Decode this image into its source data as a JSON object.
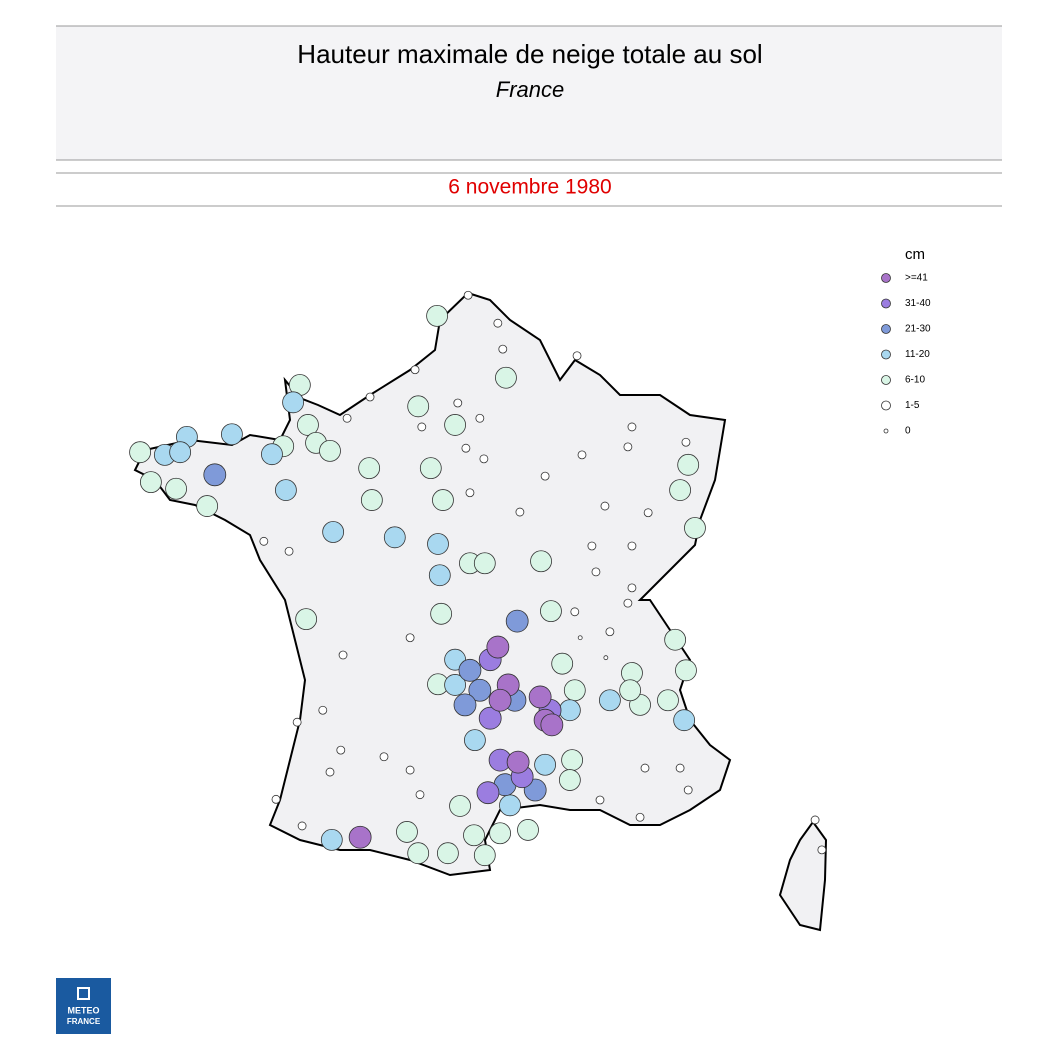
{
  "header": {
    "title": "Hauteur maximale de neige totale au sol",
    "subtitle": "France",
    "date": "6 novembre 1980"
  },
  "legend": {
    "title": "cm",
    "classes": [
      {
        "label": ">=41",
        "color": "#a873c9"
      },
      {
        "label": "31-40",
        "color": "#9b7de0"
      },
      {
        "label": "21-30",
        "color": "#7f9ad9"
      },
      {
        "label": "11-20",
        "color": "#a9d8f0"
      },
      {
        "label": "6-10",
        "color": "#d9f5e6"
      },
      {
        "label": "1-5",
        "color": "#ffffff"
      },
      {
        "label": "0",
        "color": "#ffffff"
      }
    ]
  },
  "logo": {
    "line1": "METEO",
    "line2": "FRANCE"
  },
  "stations": [
    {
      "lon": 2.57,
      "lat": 51.03,
      "class": 5
    },
    {
      "lon": 3.23,
      "lat": 50.61,
      "class": 5
    },
    {
      "lon": 3.34,
      "lat": 50.22,
      "class": 5
    },
    {
      "lon": 4.99,
      "lat": 50.12,
      "class": 5
    },
    {
      "lon": 1.39,
      "lat": 49.91,
      "class": 5
    },
    {
      "lon": 0.39,
      "lat": 49.5,
      "class": 5
    },
    {
      "lon": -0.12,
      "lat": 49.18,
      "class": 5
    },
    {
      "lon": 2.34,
      "lat": 49.41,
      "class": 5
    },
    {
      "lon": 2.83,
      "lat": 49.18,
      "class": 5
    },
    {
      "lon": 2.52,
      "lat": 48.73,
      "class": 5
    },
    {
      "lon": 2.92,
      "lat": 48.57,
      "class": 5
    },
    {
      "lon": 1.54,
      "lat": 49.05,
      "class": 5
    },
    {
      "lon": 4.28,
      "lat": 48.31,
      "class": 5
    },
    {
      "lon": 5.1,
      "lat": 48.63,
      "class": 5
    },
    {
      "lon": 6.21,
      "lat": 49.05,
      "class": 5
    },
    {
      "lon": 6.12,
      "lat": 48.75,
      "class": 5
    },
    {
      "lon": 7.41,
      "lat": 48.82,
      "class": 5
    },
    {
      "lon": 5.61,
      "lat": 47.86,
      "class": 5
    },
    {
      "lon": 6.57,
      "lat": 47.76,
      "class": 5
    },
    {
      "lon": 3.72,
      "lat": 47.77,
      "class": 5
    },
    {
      "lon": 2.61,
      "lat": 48.06,
      "class": 5
    },
    {
      "lon": -1.97,
      "lat": 47.33,
      "class": 5
    },
    {
      "lon": -1.41,
      "lat": 47.18,
      "class": 5
    },
    {
      "lon": 5.32,
      "lat": 47.26,
      "class": 5
    },
    {
      "lon": 6.21,
      "lat": 47.26,
      "class": 5
    },
    {
      "lon": 5.41,
      "lat": 46.87,
      "class": 5
    },
    {
      "lon": 4.94,
      "lat": 46.27,
      "class": 5
    },
    {
      "lon": 6.21,
      "lat": 46.63,
      "class": 5
    },
    {
      "lon": 5.72,
      "lat": 45.97,
      "class": 5
    },
    {
      "lon": 6.12,
      "lat": 46.4,
      "class": 5
    },
    {
      "lon": 1.28,
      "lat": 45.88,
      "class": 5
    },
    {
      "lon": -0.21,
      "lat": 45.62,
      "class": 5
    },
    {
      "lon": -0.66,
      "lat": 44.79,
      "class": 5
    },
    {
      "lon": -1.23,
      "lat": 44.61,
      "class": 5
    },
    {
      "lon": -0.26,
      "lat": 44.19,
      "class": 5
    },
    {
      "lon": 0.7,
      "lat": 44.09,
      "class": 5
    },
    {
      "lon": -0.5,
      "lat": 43.86,
      "class": 5
    },
    {
      "lon": 1.28,
      "lat": 43.89,
      "class": 5
    },
    {
      "lon": -1.7,
      "lat": 43.45,
      "class": 5
    },
    {
      "lon": -1.12,
      "lat": 43.05,
      "class": 5
    },
    {
      "lon": 1.5,
      "lat": 43.52,
      "class": 5
    },
    {
      "lon": 5.5,
      "lat": 43.44,
      "class": 5
    },
    {
      "lon": 6.5,
      "lat": 43.92,
      "class": 5
    },
    {
      "lon": 7.28,
      "lat": 43.92,
      "class": 5
    },
    {
      "lon": 7.46,
      "lat": 43.59,
      "class": 5
    },
    {
      "lon": 6.39,
      "lat": 43.18,
      "class": 5
    },
    {
      "lon": 10.28,
      "lat": 43.14,
      "class": 5
    },
    {
      "lon": 10.43,
      "lat": 42.69,
      "class": 5
    },
    {
      "lon": 5.06,
      "lat": 45.88,
      "class": 6
    },
    {
      "lon": 5.63,
      "lat": 45.58,
      "class": 6
    },
    {
      "lon": -4.72,
      "lat": 48.67,
      "class": 4
    },
    {
      "lon": -4.17,
      "lat": 48.63,
      "class": 3
    },
    {
      "lon": -3.68,
      "lat": 48.9,
      "class": 3
    },
    {
      "lon": -3.83,
      "lat": 48.67,
      "class": 3
    },
    {
      "lon": -2.68,
      "lat": 48.94,
      "class": 3
    },
    {
      "lon": -4.48,
      "lat": 48.22,
      "class": 4
    },
    {
      "lon": -3.92,
      "lat": 48.12,
      "class": 4
    },
    {
      "lon": -3.06,
      "lat": 48.33,
      "class": 2
    },
    {
      "lon": -3.23,
      "lat": 47.86,
      "class": 4
    },
    {
      "lon": -1.79,
      "lat": 48.64,
      "class": 3
    },
    {
      "lon": -1.48,
      "lat": 48.1,
      "class": 3
    },
    {
      "lon": -1.54,
      "lat": 48.76,
      "class": 4
    },
    {
      "lon": -1.17,
      "lat": 49.68,
      "class": 4
    },
    {
      "lon": -1.32,
      "lat": 49.42,
      "class": 3
    },
    {
      "lon": -0.99,
      "lat": 49.08,
      "class": 4
    },
    {
      "lon": -0.81,
      "lat": 48.81,
      "class": 4
    },
    {
      "lon": -0.5,
      "lat": 48.69,
      "class": 4
    },
    {
      "lon": 0.37,
      "lat": 48.43,
      "class": 4
    },
    {
      "lon": 0.43,
      "lat": 47.95,
      "class": 4
    },
    {
      "lon": 1.46,
      "lat": 49.36,
      "class": 4
    },
    {
      "lon": 1.74,
      "lat": 48.43,
      "class": 4
    },
    {
      "lon": 2.01,
      "lat": 47.95,
      "class": 4
    },
    {
      "lon": 2.28,
      "lat": 49.08,
      "class": 4
    },
    {
      "lon": 3.41,
      "lat": 49.79,
      "class": 4
    },
    {
      "lon": 1.88,
      "lat": 50.72,
      "class": 4
    },
    {
      "lon": -0.43,
      "lat": 47.47,
      "class": 3
    },
    {
      "lon": 0.94,
      "lat": 47.39,
      "class": 3
    },
    {
      "lon": 1.9,
      "lat": 47.29,
      "class": 3
    },
    {
      "lon": 1.94,
      "lat": 46.82,
      "class": 3
    },
    {
      "lon": 2.61,
      "lat": 47.0,
      "class": 4
    },
    {
      "lon": 2.94,
      "lat": 47.0,
      "class": 4
    },
    {
      "lon": 4.19,
      "lat": 47.03,
      "class": 4
    },
    {
      "lon": 1.97,
      "lat": 46.24,
      "class": 4
    },
    {
      "lon": 3.66,
      "lat": 46.13,
      "class": 2
    },
    {
      "lon": -1.03,
      "lat": 46.16,
      "class": 4
    },
    {
      "lon": 4.41,
      "lat": 46.28,
      "class": 4
    },
    {
      "lon": 3.23,
      "lat": 45.74,
      "class": 0
    },
    {
      "lon": 3.06,
      "lat": 45.55,
      "class": 1
    },
    {
      "lon": 2.61,
      "lat": 45.39,
      "class": 2
    },
    {
      "lon": 2.28,
      "lat": 45.55,
      "class": 3
    },
    {
      "lon": 2.83,
      "lat": 45.09,
      "class": 2
    },
    {
      "lon": 3.46,
      "lat": 45.17,
      "class": 0
    },
    {
      "lon": 3.28,
      "lat": 44.94,
      "class": 0
    },
    {
      "lon": 3.06,
      "lat": 44.67,
      "class": 1
    },
    {
      "lon": 3.61,
      "lat": 44.94,
      "class": 2
    },
    {
      "lon": 4.17,
      "lat": 44.99,
      "class": 0
    },
    {
      "lon": 4.39,
      "lat": 44.79,
      "class": 1
    },
    {
      "lon": 4.28,
      "lat": 44.64,
      "class": 0
    },
    {
      "lon": 4.43,
      "lat": 44.57,
      "class": 0
    },
    {
      "lon": 4.83,
      "lat": 44.79,
      "class": 3
    },
    {
      "lon": 4.94,
      "lat": 45.09,
      "class": 4
    },
    {
      "lon": 4.66,
      "lat": 45.49,
      "class": 4
    },
    {
      "lon": 2.72,
      "lat": 44.34,
      "class": 3
    },
    {
      "lon": 1.9,
      "lat": 45.18,
      "class": 4
    },
    {
      "lon": 2.5,
      "lat": 44.87,
      "class": 2
    },
    {
      "lon": 2.28,
      "lat": 45.17,
      "class": 3
    },
    {
      "lon": 3.28,
      "lat": 44.04,
      "class": 1
    },
    {
      "lon": 3.68,
      "lat": 44.01,
      "class": 0
    },
    {
      "lon": 3.77,
      "lat": 43.79,
      "class": 1
    },
    {
      "lon": 4.06,
      "lat": 43.59,
      "class": 2
    },
    {
      "lon": 3.01,
      "lat": 43.55,
      "class": 1
    },
    {
      "lon": 3.5,
      "lat": 43.36,
      "class": 3
    },
    {
      "lon": 4.28,
      "lat": 43.97,
      "class": 3
    },
    {
      "lon": 4.88,
      "lat": 44.04,
      "class": 4
    },
    {
      "lon": 4.83,
      "lat": 43.74,
      "class": 4
    },
    {
      "lon": 3.9,
      "lat": 42.99,
      "class": 4
    },
    {
      "lon": 3.28,
      "lat": 42.94,
      "class": 4
    },
    {
      "lon": 2.94,
      "lat": 42.61,
      "class": 4
    },
    {
      "lon": 2.7,
      "lat": 42.91,
      "class": 4
    },
    {
      "lon": 2.12,
      "lat": 42.64,
      "class": 4
    },
    {
      "lon": 2.39,
      "lat": 43.35,
      "class": 4
    },
    {
      "lon": 1.21,
      "lat": 42.96,
      "class": 4
    },
    {
      "lon": -0.46,
      "lat": 42.84,
      "class": 3
    },
    {
      "lon": 0.17,
      "lat": 42.88,
      "class": 0
    },
    {
      "lon": 1.46,
      "lat": 42.64,
      "class": 4
    },
    {
      "lon": 3.39,
      "lat": 43.67,
      "class": 2
    },
    {
      "lon": 5.72,
      "lat": 44.94,
      "class": 3
    },
    {
      "lon": 6.21,
      "lat": 45.35,
      "class": 4
    },
    {
      "lon": 6.39,
      "lat": 44.87,
      "class": 4
    },
    {
      "lon": 7.01,
      "lat": 44.94,
      "class": 4
    },
    {
      "lon": 7.37,
      "lat": 44.64,
      "class": 3
    },
    {
      "lon": 7.17,
      "lat": 45.85,
      "class": 4
    },
    {
      "lon": 7.41,
      "lat": 45.39,
      "class": 4
    },
    {
      "lon": 7.46,
      "lat": 48.48,
      "class": 4
    },
    {
      "lon": 7.28,
      "lat": 48.1,
      "class": 4
    },
    {
      "lon": 7.61,
      "lat": 47.53,
      "class": 4
    },
    {
      "lon": 6.17,
      "lat": 45.09,
      "class": 4
    }
  ]
}
